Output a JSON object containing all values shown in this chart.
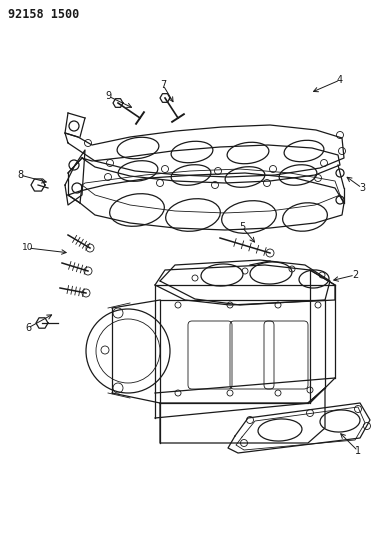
{
  "title_code": "92158 1500",
  "bg_color": "#ffffff",
  "line_color": "#1a1a1a",
  "fig_width": 3.76,
  "fig_height": 5.33,
  "dpi": 100
}
